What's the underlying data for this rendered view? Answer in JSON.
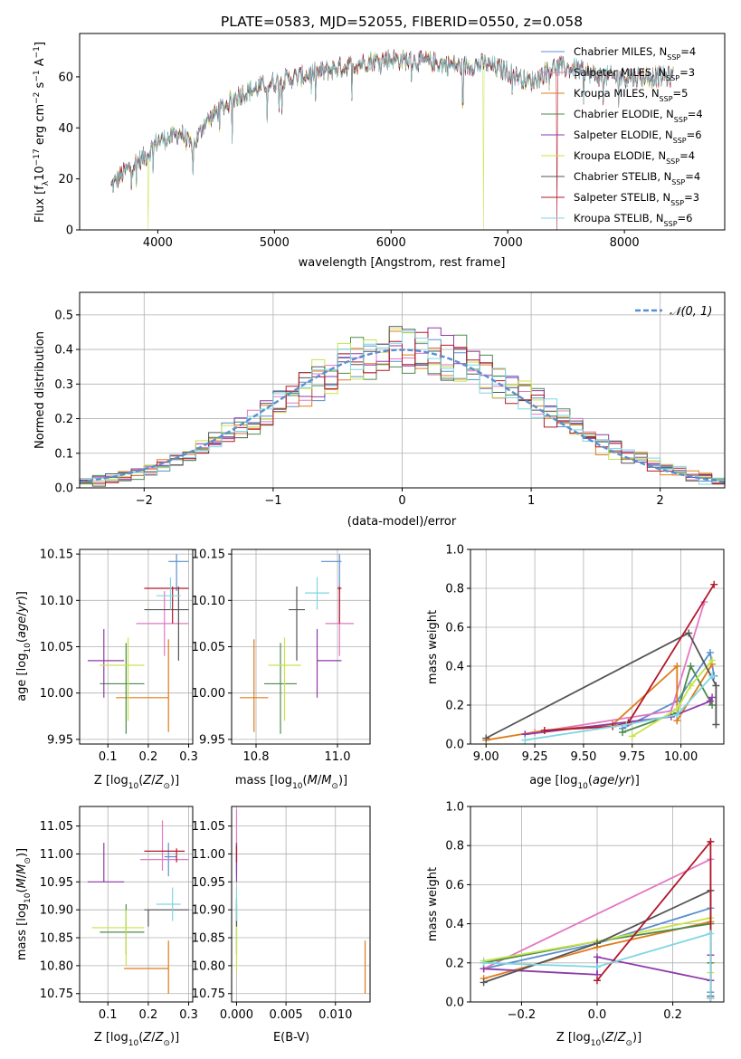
{
  "title": "PLATE=0583, MJD=52055, FIBERID=0550, z=0.058",
  "colors": {
    "Chabrier MILES": "#5a8fcf",
    "Salpeter MILES": "#e377c2",
    "Kroupa MILES": "#e07b1a",
    "Chabrier ELODIE": "#4c8a4c",
    "Salpeter ELODIE": "#8e3aa8",
    "Kroupa ELODIE": "#c7e34a",
    "Chabrier STELIB": "#555555",
    "Salpeter STELIB": "#b2182b",
    "Kroupa STELIB": "#7fd6e0"
  },
  "chart_data": [
    {
      "type": "line",
      "id": "spectrum",
      "xlabel": "wavelength [Angstrom, rest frame]",
      "ylabel": "Flux [f_λ 10^-17 erg cm^-2 s^-1 A^-1]",
      "xlim": [
        3330,
        8860
      ],
      "ylim": [
        0,
        77
      ],
      "xticks": [
        4000,
        5000,
        6000,
        7000,
        8000
      ],
      "yticks": [
        0,
        20,
        40,
        60
      ],
      "legend_placement": "right",
      "grid": false,
      "series": [
        {
          "name": "Chabrier MILES, N",
          "sub": "SSP",
          "suffix": "=4"
        },
        {
          "name": "Salpeter MILES, N",
          "sub": "SSP",
          "suffix": "=3"
        },
        {
          "name": "Kroupa MILES, N",
          "sub": "SSP",
          "suffix": "=5"
        },
        {
          "name": "Chabrier ELODIE, N",
          "sub": "SSP",
          "suffix": "=4"
        },
        {
          "name": "Salpeter ELODIE, N",
          "sub": "SSP",
          "suffix": "=6"
        },
        {
          "name": "Kroupa ELODIE, N",
          "sub": "SSP",
          "suffix": "=4"
        },
        {
          "name": "Chabrier STELIB, N",
          "sub": "SSP",
          "suffix": "=4"
        },
        {
          "name": "Salpeter STELIB, N",
          "sub": "SSP",
          "suffix": "=3"
        },
        {
          "name": "Kroupa STELIB, N",
          "sub": "SSP",
          "suffix": "=6"
        }
      ],
      "continuum": {
        "x": [
          3600,
          3700,
          3800,
          3900,
          4000,
          4100,
          4200,
          4300,
          4400,
          4500,
          4700,
          5000,
          5200,
          5500,
          5800,
          6000,
          6300,
          6600,
          6800,
          7000,
          7200,
          7400,
          7600,
          7800
        ],
        "y": [
          17,
          22,
          26,
          29,
          35,
          36,
          38,
          32,
          42,
          46,
          53,
          58,
          60,
          63,
          66,
          67,
          66,
          64,
          65,
          62,
          58,
          64,
          63,
          60
        ]
      },
      "dropouts": [
        {
          "x": 3920,
          "series": "Kroupa ELODIE"
        },
        {
          "x": 6790,
          "series": "Kroupa ELODIE"
        },
        {
          "x": 7420,
          "series": "Salpeter STELIB"
        }
      ]
    },
    {
      "type": "step",
      "id": "residual-histogram",
      "xlabel": "(data-model)/error",
      "ylabel": "Normed distribution",
      "xlim": [
        -2.5,
        2.5
      ],
      "ylim": [
        0,
        0.565
      ],
      "xticks": [
        -2,
        -1,
        0,
        1,
        2
      ],
      "yticks": [
        0.0,
        0.1,
        0.2,
        0.3,
        0.4,
        0.5
      ],
      "grid": true,
      "reference": {
        "name": "𝒩(0, 1)"
      },
      "hist_x": [
        -2.5,
        2.5
      ],
      "hist_bins": 50
    },
    {
      "type": "scatter",
      "id": "age-vs-Z",
      "xlabel": "Z [log10(Z/Z⊙)]",
      "ylabel": "age  [log10(age/yr)]",
      "xlim": [
        0.03,
        0.31
      ],
      "ylim": [
        9.945,
        10.155
      ],
      "xticks": [
        0.1,
        0.2,
        0.3
      ],
      "yticks": [
        9.95,
        10.0,
        10.05,
        10.1,
        10.15
      ],
      "grid": true,
      "points": [
        {
          "series": "Chabrier MILES",
          "x": 0.27,
          "y": 10.142,
          "xerr": [
            0.25,
            0.3
          ],
          "yerr": [
            10.11,
            10.15
          ]
        },
        {
          "series": "Salpeter MILES",
          "x": 0.24,
          "y": 10.075,
          "xerr": [
            0.17,
            0.3
          ],
          "yerr": [
            10.04,
            10.11
          ]
        },
        {
          "series": "Kroupa MILES",
          "x": 0.25,
          "y": 9.995,
          "xerr": [
            0.12,
            0.25
          ],
          "yerr": [
            9.958,
            10.058
          ]
        },
        {
          "series": "Chabrier ELODIE",
          "x": 0.145,
          "y": 10.01,
          "xerr": [
            0.08,
            0.19
          ],
          "yerr": [
            9.956,
            10.054
          ]
        },
        {
          "series": "Salpeter ELODIE",
          "x": 0.09,
          "y": 10.035,
          "xerr": [
            0.05,
            0.14
          ],
          "yerr": [
            9.995,
            10.069
          ]
        },
        {
          "series": "Kroupa ELODIE",
          "x": 0.15,
          "y": 10.03,
          "xerr": [
            0.08,
            0.19
          ],
          "yerr": [
            9.97,
            10.06
          ]
        },
        {
          "series": "Chabrier STELIB",
          "x": 0.275,
          "y": 10.09,
          "xerr": [
            0.19,
            0.3
          ],
          "yerr": [
            10.035,
            10.115
          ]
        },
        {
          "series": "Salpeter STELIB",
          "x": 0.26,
          "y": 10.113,
          "xerr": [
            0.19,
            0.3
          ],
          "yerr": [
            10.075,
            10.115
          ]
        },
        {
          "series": "Kroupa STELIB",
          "x": 0.255,
          "y": 10.105,
          "xerr": [
            0.22,
            0.28
          ],
          "yerr": [
            10.09,
            10.125
          ]
        }
      ]
    },
    {
      "type": "scatter",
      "id": "age-vs-mass",
      "xlabel": "mass [log10(M/M⊙)]",
      "ylabel": "",
      "xlim": [
        10.74,
        11.08
      ],
      "ylim": [
        9.945,
        10.155
      ],
      "xticks": [
        10.8,
        11.0
      ],
      "yticks": [
        9.95,
        10.0,
        10.05,
        10.1,
        10.15
      ],
      "grid": true,
      "points": [
        {
          "series": "Chabrier MILES",
          "x": 11.005,
          "y": 10.142,
          "xerr": [
            10.96,
            11.01
          ],
          "yerr": [
            10.11,
            10.15
          ]
        },
        {
          "series": "Salpeter MILES",
          "x": 11.005,
          "y": 10.075,
          "xerr": [
            10.97,
            11.04
          ],
          "yerr": [
            10.04,
            10.11
          ]
        },
        {
          "series": "Kroupa MILES",
          "x": 10.795,
          "y": 9.995,
          "xerr": [
            10.76,
            10.83
          ],
          "yerr": [
            9.958,
            10.058
          ]
        },
        {
          "series": "Chabrier ELODIE",
          "x": 10.86,
          "y": 10.01,
          "xerr": [
            10.82,
            10.9
          ],
          "yerr": [
            9.956,
            10.054
          ]
        },
        {
          "series": "Salpeter ELODIE",
          "x": 10.95,
          "y": 10.035,
          "xerr": [
            10.95,
            11.01
          ],
          "yerr": [
            9.995,
            10.069
          ]
        },
        {
          "series": "Kroupa ELODIE",
          "x": 10.87,
          "y": 10.03,
          "xerr": [
            10.83,
            10.91
          ],
          "yerr": [
            9.97,
            10.06
          ]
        },
        {
          "series": "Chabrier STELIB",
          "x": 10.9,
          "y": 10.09,
          "xerr": [
            10.88,
            10.92
          ],
          "yerr": [
            10.035,
            10.115
          ]
        },
        {
          "series": "Salpeter STELIB",
          "x": 11.005,
          "y": 10.113,
          "xerr": [
            11.0,
            11.01
          ],
          "yerr": [
            10.075,
            10.115
          ]
        },
        {
          "series": "Kroupa STELIB",
          "x": 10.95,
          "y": 10.108,
          "xerr": [
            10.92,
            10.98
          ],
          "yerr": [
            10.09,
            10.125
          ]
        }
      ]
    },
    {
      "type": "line",
      "id": "mass-weight-vs-age",
      "xlabel": "age  [log10(age/yr)]",
      "ylabel": "mass weight",
      "xlim": [
        8.92,
        10.22
      ],
      "ylim": [
        0,
        1
      ],
      "xticks": [
        9.0,
        9.25,
        9.5,
        9.75,
        10.0
      ],
      "yticks": [
        0.0,
        0.2,
        0.4,
        0.6,
        0.8,
        1.0
      ],
      "grid": true,
      "series": [
        {
          "name": "Chabrier MILES",
          "x": [
            9.7,
            9.98,
            10.15,
            10.17
          ],
          "y": [
            0.08,
            0.22,
            0.47,
            0.35
          ]
        },
        {
          "name": "Salpeter MILES",
          "x": [
            9.25,
            9.95,
            10.12
          ],
          "y": [
            0.06,
            0.17,
            0.73
          ]
        },
        {
          "name": "Kroupa MILES",
          "x": [
            9.0,
            9.3,
            9.65,
            9.98,
            9.98,
            10.16
          ],
          "y": [
            0.02,
            0.07,
            0.1,
            0.4,
            0.12,
            0.41
          ]
        },
        {
          "name": "Chabrier ELODIE",
          "x": [
            9.7,
            9.98,
            10.05,
            10.16
          ],
          "y": [
            0.06,
            0.16,
            0.4,
            0.2
          ]
        },
        {
          "name": "Salpeter ELODIE",
          "x": [
            9.2,
            9.95,
            10.15,
            10.16
          ],
          "y": [
            0.05,
            0.14,
            0.22,
            0.24
          ]
        },
        {
          "name": "Kroupa ELODIE",
          "x": [
            9.75,
            9.98,
            10.05,
            10.16
          ],
          "y": [
            0.04,
            0.18,
            0.3,
            0.43
          ]
        },
        {
          "name": "Chabrier STELIB",
          "x": [
            9.0,
            10.04,
            10.18,
            10.18
          ],
          "y": [
            0.03,
            0.57,
            0.3,
            0.1
          ]
        },
        {
          "name": "Salpeter STELIB",
          "x": [
            9.3,
            9.65,
            9.73,
            10.17
          ],
          "y": [
            0.07,
            0.09,
            0.11,
            0.82
          ]
        },
        {
          "name": "Kroupa STELIB",
          "x": [
            9.2,
            9.72,
            9.98,
            10.16
          ],
          "y": [
            0.02,
            0.1,
            0.15,
            0.35
          ]
        }
      ]
    },
    {
      "type": "scatter",
      "id": "mass-vs-Z",
      "xlabel": "Z [log10(Z/Z⊙)]",
      "ylabel": "mass [log10(M/M⊙)]",
      "xlim": [
        0.03,
        0.31
      ],
      "ylim": [
        10.735,
        11.085
      ],
      "xticks": [
        0.1,
        0.2,
        0.3
      ],
      "yticks": [
        10.75,
        10.8,
        10.85,
        10.9,
        10.95,
        11.0,
        11.05
      ],
      "grid": true,
      "points": [
        {
          "series": "Chabrier MILES",
          "x": 0.25,
          "y": 10.995,
          "xerr": [
            0.24,
            0.27
          ],
          "yerr": [
            10.96,
            11.02
          ]
        },
        {
          "series": "Salpeter MILES",
          "x": 0.235,
          "y": 10.99,
          "xerr": [
            0.18,
            0.3
          ],
          "yerr": [
            10.97,
            11.06
          ]
        },
        {
          "series": "Kroupa MILES",
          "x": 0.25,
          "y": 10.795,
          "xerr": [
            0.14,
            0.25
          ],
          "yerr": [
            10.75,
            10.845
          ]
        },
        {
          "series": "Chabrier ELODIE",
          "x": 0.145,
          "y": 10.86,
          "xerr": [
            0.08,
            0.19
          ],
          "yerr": [
            10.82,
            10.91
          ]
        },
        {
          "series": "Salpeter ELODIE",
          "x": 0.09,
          "y": 10.95,
          "xerr": [
            0.05,
            0.14
          ],
          "yerr": [
            10.95,
            11.02
          ]
        },
        {
          "series": "Kroupa ELODIE",
          "x": 0.145,
          "y": 10.868,
          "xerr": [
            0.06,
            0.19
          ],
          "yerr": [
            10.8,
            10.9
          ]
        },
        {
          "series": "Chabrier STELIB",
          "x": 0.2,
          "y": 10.9,
          "xerr": [
            0.19,
            0.3
          ],
          "yerr": [
            10.87,
            10.9
          ]
        },
        {
          "series": "Salpeter STELIB",
          "x": 0.27,
          "y": 11.005,
          "xerr": [
            0.19,
            0.29
          ],
          "yerr": [
            10.985,
            11.01
          ]
        },
        {
          "series": "Kroupa STELIB",
          "x": 0.26,
          "y": 10.91,
          "xerr": [
            0.22,
            0.28
          ],
          "yerr": [
            10.88,
            10.94
          ]
        }
      ]
    },
    {
      "type": "scatter",
      "id": "mass-vs-EBV",
      "xlabel": "E(B-V)",
      "ylabel": "",
      "xlim": [
        -0.0005,
        0.0135
      ],
      "ylim": [
        10.735,
        11.085
      ],
      "xticks": [
        0.0,
        0.005,
        0.01
      ],
      "yticks": [
        10.75,
        10.8,
        10.85,
        10.9,
        10.95,
        11.0,
        11.05
      ],
      "grid": true,
      "points": [
        {
          "series": "Chabrier MILES",
          "x": 0.0,
          "y": 10.995,
          "xerr": [
            0.0,
            0.0
          ],
          "yerr": [
            10.96,
            11.02
          ]
        },
        {
          "series": "Salpeter MILES",
          "x": 0.0,
          "y": 10.99,
          "xerr": [
            0.0,
            0.0
          ],
          "yerr": [
            10.97,
            11.08
          ]
        },
        {
          "series": "Kroupa MILES",
          "x": 0.013,
          "y": 10.795,
          "xerr": [
            0.013,
            0.013
          ],
          "yerr": [
            10.75,
            10.845
          ]
        },
        {
          "series": "Chabrier ELODIE",
          "x": 0.0,
          "y": 10.86,
          "xerr": [
            0.0,
            0.0
          ],
          "yerr": [
            10.82,
            10.91
          ]
        },
        {
          "series": "Salpeter ELODIE",
          "x": 0.0,
          "y": 10.98,
          "xerr": [
            0.0,
            0.0
          ],
          "yerr": [
            10.95,
            11.02
          ]
        },
        {
          "series": "Kroupa ELODIE",
          "x": 0.0,
          "y": 10.84,
          "xerr": [
            0.0,
            0.0
          ],
          "yerr": [
            10.79,
            10.9
          ]
        },
        {
          "series": "Chabrier STELIB",
          "x": 0.0,
          "y": 10.9,
          "xerr": [
            0.0,
            0.0
          ],
          "yerr": [
            10.87,
            10.92
          ]
        },
        {
          "series": "Salpeter STELIB",
          "x": 0.0,
          "y": 11.005,
          "xerr": [
            0.0,
            0.0
          ],
          "yerr": [
            10.985,
            11.015
          ]
        },
        {
          "series": "Kroupa STELIB",
          "x": 0.0,
          "y": 10.91,
          "xerr": [
            0.0,
            0.0
          ],
          "yerr": [
            10.88,
            10.94
          ]
        }
      ]
    },
    {
      "type": "line",
      "id": "mass-weight-vs-Z",
      "xlabel": "Z [log10(Z/Z⊙)]",
      "ylabel": "mass weight",
      "xlim": [
        -0.335,
        0.335
      ],
      "ylim": [
        0,
        1
      ],
      "xticks": [
        -0.2,
        0.0,
        0.2
      ],
      "yticks": [
        0.0,
        0.2,
        0.4,
        0.6,
        0.8,
        1.0
      ],
      "grid": true,
      "series": [
        {
          "name": "Chabrier MILES",
          "x": [
            -0.3,
            0.0,
            0.3,
            0.3
          ],
          "y": [
            0.17,
            0.3,
            0.48,
            0.05
          ]
        },
        {
          "name": "Salpeter MILES",
          "x": [
            -0.3,
            0.3,
            0.3
          ],
          "y": [
            0.17,
            0.73,
            0.02
          ]
        },
        {
          "name": "Kroupa MILES",
          "x": [
            -0.3,
            0.0,
            0.3,
            0.3
          ],
          "y": [
            0.12,
            0.28,
            0.41,
            0.02
          ]
        },
        {
          "name": "Chabrier ELODIE",
          "x": [
            -0.3,
            0.0,
            0.3,
            0.3
          ],
          "y": [
            0.2,
            0.31,
            0.4,
            0.2
          ]
        },
        {
          "name": "Salpeter ELODIE",
          "x": [
            -0.3,
            0.0,
            0.0,
            0.3,
            0.3
          ],
          "y": [
            0.17,
            0.14,
            0.23,
            0.11,
            0.24
          ]
        },
        {
          "name": "Kroupa ELODIE",
          "x": [
            -0.3,
            0.0,
            0.3,
            0.3
          ],
          "y": [
            0.21,
            0.31,
            0.43,
            0.15
          ]
        },
        {
          "name": "Chabrier STELIB",
          "x": [
            -0.3,
            0.0,
            0.3,
            0.3
          ],
          "y": [
            0.1,
            0.3,
            0.57,
            0.03
          ]
        },
        {
          "name": "Salpeter STELIB",
          "x": [
            0.0,
            0.3,
            0.3
          ],
          "y": [
            0.11,
            0.82,
            0.02
          ]
        },
        {
          "name": "Kroupa STELIB",
          "x": [
            -0.3,
            0.0,
            0.3,
            0.3
          ],
          "y": [
            0.2,
            0.18,
            0.35,
            0.02
          ]
        }
      ]
    }
  ]
}
